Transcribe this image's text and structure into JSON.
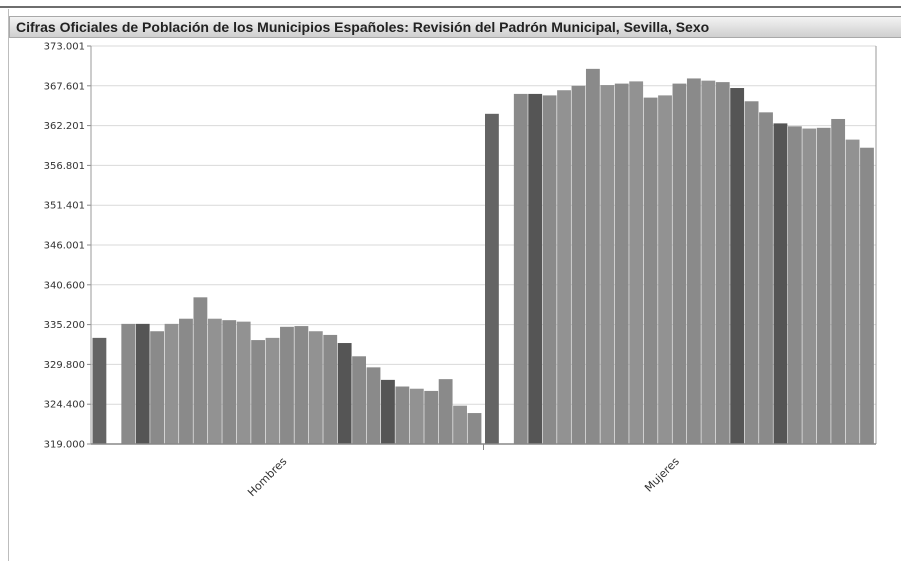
{
  "header": {
    "title": "Cifras Oficiales de Población de los Municipios Españoles: Revisión del Padrón Municipal, Sevilla, Sexo"
  },
  "chart_data": {
    "type": "bar",
    "title": "Cifras Oficiales de Población de los Municipios Españoles: Revisión del Padrón Municipal, Sevilla, Sexo",
    "xlabel": "",
    "ylabel": "",
    "ylim": [
      319000,
      373001
    ],
    "yticks": [
      "373.001",
      "367.601",
      "362.201",
      "356.801",
      "351.401",
      "346.001",
      "340.600",
      "335.200",
      "329.800",
      "324.400",
      "319.000"
    ],
    "grid": true,
    "legend": "none",
    "categories": [
      "Hombres",
      "Mujeres"
    ],
    "groups": [
      {
        "category": "Hombres",
        "values": [
          333400,
          null,
          335300,
          335300,
          334300,
          335300,
          336000,
          338900,
          336000,
          335800,
          335600,
          333100,
          333400,
          334900,
          335000,
          334300,
          333800,
          332700,
          330900,
          329400,
          327700,
          326800,
          326500,
          326200,
          327800,
          324200,
          323200
        ]
      },
      {
        "category": "Mujeres",
        "values": [
          363800,
          null,
          366500,
          366500,
          366300,
          367000,
          367600,
          369900,
          367700,
          367900,
          368200,
          366000,
          366300,
          367900,
          368600,
          368300,
          368100,
          367300,
          365500,
          364000,
          362500,
          362100,
          361800,
          361900,
          363100,
          360300,
          359200
        ]
      }
    ],
    "colors": [
      "#646464",
      "#8a8a8a",
      "#929292",
      "#555555"
    ]
  }
}
